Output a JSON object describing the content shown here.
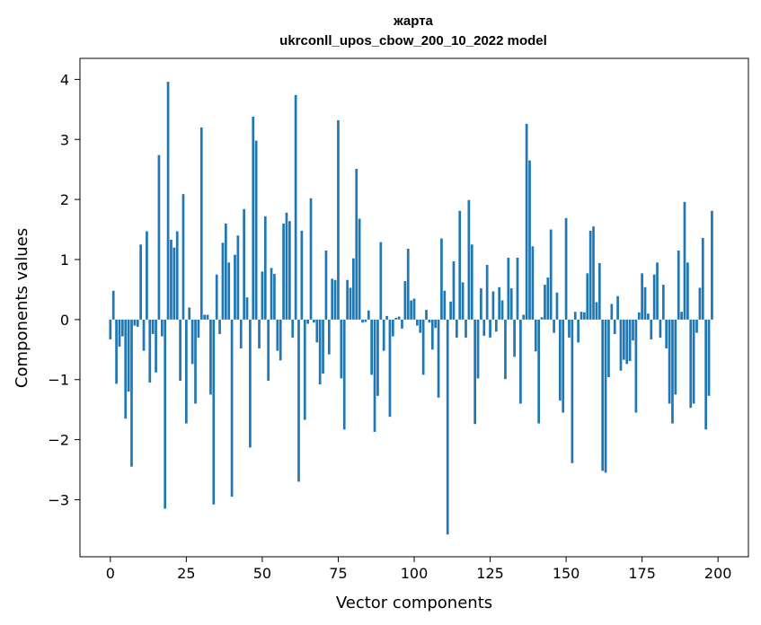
{
  "chart_data": {
    "type": "bar",
    "title": "жарта",
    "subtitle": "ukrconll_upos_cbow_200_10_2022 model",
    "xlabel": "Vector components",
    "ylabel": "Components values",
    "xlim": [
      -10,
      210
    ],
    "ylim": [
      -3.95,
      4.35
    ],
    "xticks": [
      0,
      25,
      50,
      75,
      100,
      125,
      150,
      175,
      200
    ],
    "yticks": [
      -3,
      -2,
      -1,
      0,
      1,
      2,
      3,
      4
    ],
    "ytick_labels": [
      "−3",
      "−2",
      "−1",
      "0",
      "1",
      "2",
      "3",
      "4"
    ],
    "grid": false,
    "bar_color": "#1f77b4",
    "values": [
      -0.33,
      0.48,
      -1.07,
      -0.45,
      -0.28,
      -1.65,
      -1.2,
      -2.45,
      -0.1,
      -0.12,
      1.25,
      -0.52,
      1.47,
      -1.05,
      -0.24,
      -0.88,
      2.74,
      -0.28,
      -3.15,
      3.96,
      1.33,
      1.2,
      1.47,
      -1.02,
      2.09,
      -1.73,
      0.2,
      -0.74,
      -1.4,
      -0.3,
      3.2,
      0.08,
      0.08,
      -1.25,
      -3.08,
      0.75,
      -0.24,
      1.28,
      1.6,
      0.95,
      -2.95,
      1.08,
      1.4,
      -0.48,
      1.84,
      0.37,
      -2.13,
      3.38,
      2.98,
      -0.48,
      0.8,
      1.72,
      -1.02,
      0.86,
      0.76,
      -0.52,
      -0.68,
      1.6,
      1.78,
      1.64,
      -0.3,
      3.74,
      -2.7,
      1.48,
      -1.67,
      -0.07,
      2.02,
      -0.05,
      -0.38,
      -1.08,
      -0.9,
      1.15,
      -0.58,
      0.68,
      0.66,
      3.32,
      -0.98,
      -1.83,
      0.66,
      0.53,
      1.02,
      2.51,
      1.68,
      -0.05,
      -0.04,
      0.15,
      -0.92,
      -1.87,
      -1.27,
      1.29,
      -0.52,
      0.06,
      -1.62,
      -0.28,
      0.03,
      0.05,
      -0.15,
      0.64,
      1.18,
      0.32,
      0.35,
      -0.1,
      -0.22,
      -0.92,
      0.16,
      -0.05,
      -0.5,
      -0.14,
      -1.3,
      1.35,
      0.48,
      -3.58,
      0.3,
      0.97,
      -0.3,
      1.81,
      0.62,
      -0.3,
      1.99,
      1.25,
      -1.74,
      -0.98,
      0.52,
      -0.27,
      0.91,
      -0.3,
      0.47,
      -0.2,
      0.54,
      0.32,
      -0.99,
      1.03,
      0.52,
      -0.62,
      1.03,
      -1.4,
      0.08,
      3.26,
      2.65,
      1.22,
      -0.53,
      -1.73,
      0.04,
      0.58,
      0.7,
      1.5,
      -0.22,
      0.45,
      -1.35,
      -1.55,
      1.69,
      -0.3,
      -2.39,
      0.13,
      -0.38,
      0.13,
      0.12,
      0.77,
      1.48,
      1.55,
      0.29,
      0.94,
      -2.52,
      -2.55,
      -0.96,
      0.26,
      -0.24,
      0.39,
      -0.85,
      -0.67,
      -0.74,
      -0.69,
      -0.35,
      -1.55,
      0.12,
      0.77,
      0.54,
      0.1,
      -0.33,
      0.75,
      0.95,
      -0.3,
      0.58,
      -0.48,
      -1.4,
      -1.73,
      -1.25,
      1.15,
      0.13,
      1.96,
      0.95,
      -1.47,
      -1.4,
      -0.22,
      0.53,
      1.36,
      -1.83,
      -1.27,
      1.81
    ]
  }
}
